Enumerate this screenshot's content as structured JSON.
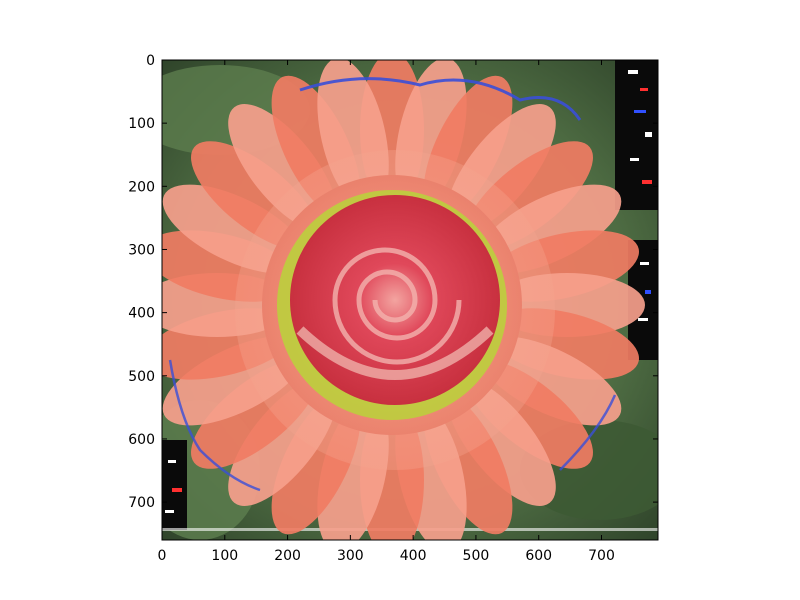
{
  "figure": {
    "background": "#ffffff",
    "axis_color": "#000000",
    "image_description_kind": "blended-flower-photo"
  },
  "chart_data": {
    "type": "image",
    "xlim": [
      0,
      790
    ],
    "ylim": [
      760,
      0
    ],
    "x_ticks": [
      0,
      100,
      200,
      300,
      400,
      500,
      600,
      700
    ],
    "y_ticks": [
      0,
      100,
      200,
      300,
      400,
      500,
      600,
      700
    ],
    "x_tick_labels": [
      "0",
      "100",
      "200",
      "300",
      "400",
      "500",
      "600",
      "700"
    ],
    "y_tick_labels": [
      "0",
      "100",
      "200",
      "300",
      "400",
      "500",
      "600",
      "700"
    ],
    "title": "",
    "xlabel": "",
    "ylabel": "",
    "grid": false
  },
  "colors": {
    "petal_salmon": "#f07c63",
    "petal_light": "#f6a08c",
    "rose_red": "#e0485a",
    "rose_deep": "#c8303f",
    "pollen_yellow": "#b9d43a",
    "leaf_dark": "#2f4a2c",
    "leaf_mid": "#5c7d4e",
    "edge_blue": "#3a4fd8",
    "edge_black": "#0a0a0a"
  }
}
